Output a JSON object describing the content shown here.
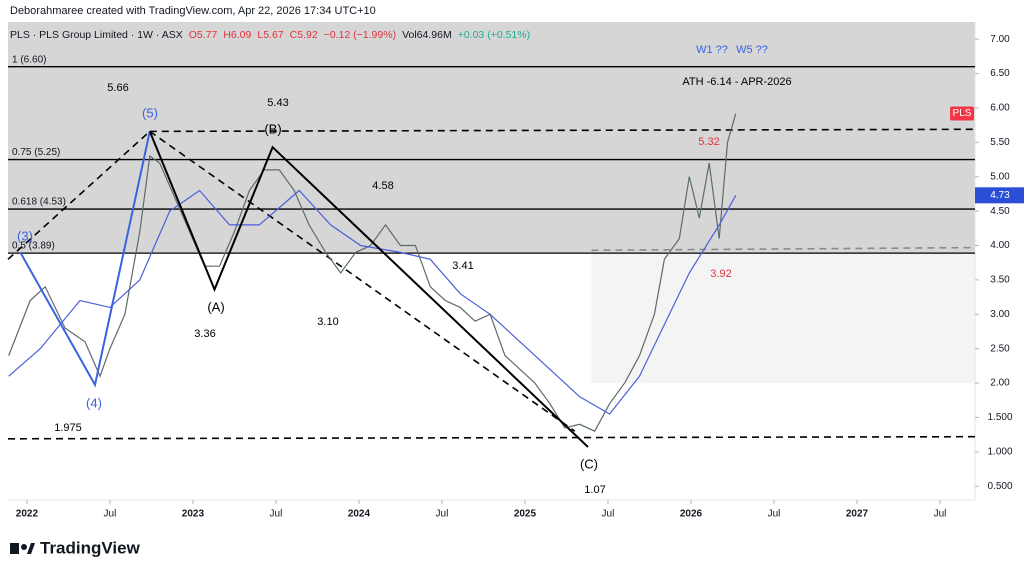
{
  "header": {
    "credit": "Deborahmaree created with TradingView.com, Apr 22, 2026 17:34 UTC+10"
  },
  "footer": {
    "brand": "TradingView"
  },
  "chart_data": {
    "type": "line",
    "legend_text": "PLS · PLS Group Limited · 1W · ASX",
    "ohlc": [
      "O5.77",
      "H6.09",
      "L5.67",
      "C5.92",
      "−0.12 (−1.99%)"
    ],
    "volume": [
      "Vol64.96M",
      "+0.03 (+0.51%)"
    ],
    "xlim": [
      2021.886,
      2027.711
    ],
    "ylim": [
      0.3,
      7.25
    ],
    "xticks": [
      2022,
      {
        "value": 2022.5,
        "label": "Jul"
      },
      2023,
      {
        "value": 2023.5,
        "label": "Jul"
      },
      2024,
      {
        "value": 2024.5,
        "label": "Jul"
      },
      2025,
      {
        "value": 2025.5,
        "label": "Jul"
      },
      2026,
      {
        "value": 2026.5,
        "label": "Jul"
      },
      2027,
      {
        "value": 2027.5,
        "label": "Jul"
      }
    ],
    "yticks": [
      {
        "value": 7,
        "label": "7.00"
      },
      {
        "value": 6.5,
        "label": "6.50"
      },
      {
        "value": 6,
        "label": "6.00"
      },
      {
        "value": 5.5,
        "label": "5.50"
      },
      {
        "value": 5,
        "label": "5.00"
      },
      {
        "value": 4.5,
        "label": "4.50"
      },
      {
        "value": 4,
        "label": "4.00"
      },
      {
        "value": 3.5,
        "label": "3.50"
      },
      {
        "value": 3,
        "label": "3.00"
      },
      {
        "value": 2.5,
        "label": "2.50"
      },
      {
        "value": 2,
        "label": "2.00"
      },
      {
        "value": 1.5,
        "label": "1.500"
      },
      {
        "value": 1,
        "label": "1.000"
      },
      {
        "value": 0.5,
        "label": "0.500"
      }
    ],
    "grid": false,
    "series": [
      {
        "color": "#5d6b6b",
        "x": [
          2021.89,
          2022.02,
          2022.11,
          2022.23,
          2022.35,
          2022.44,
          2022.5,
          2022.59,
          2022.68,
          2022.74,
          2022.8,
          2022.89,
          2022.98,
          2023.07,
          2023.16,
          2023.25,
          2023.34,
          2023.43,
          2023.52,
          2023.61,
          2023.7,
          2023.8,
          2023.89,
          2023.98,
          2024.07,
          2024.16,
          2024.25,
          2024.34,
          2024.43,
          2024.52,
          2024.61,
          2024.7,
          2024.79,
          2024.88,
          2024.97,
          2025.06,
          2025.15,
          2025.24,
          2025.33,
          2025.42,
          2025.51,
          2025.6,
          2025.69,
          2025.78,
          2025.84,
          2025.93,
          2025.99,
          2026.05,
          2026.11,
          2026.17,
          2026.22,
          2026.27
        ],
        "values": [
          2.4,
          3.2,
          3.4,
          2.8,
          2.6,
          2.1,
          2.5,
          3.0,
          4.2,
          5.3,
          5.2,
          4.7,
          4.2,
          3.7,
          3.7,
          4.2,
          4.8,
          5.1,
          5.1,
          4.8,
          4.3,
          3.9,
          3.6,
          3.9,
          4.0,
          4.3,
          4.0,
          4.0,
          3.4,
          3.2,
          3.1,
          2.9,
          3.0,
          2.4,
          2.2,
          2.0,
          1.7,
          1.35,
          1.4,
          1.3,
          1.7,
          2.0,
          2.4,
          3.0,
          3.8,
          4.1,
          5.0,
          4.4,
          5.2,
          4.1,
          5.5,
          5.92
        ]
      },
      {
        "color": "#4a5fd9",
        "x": [
          2021.89,
          2022.08,
          2022.32,
          2022.5,
          2022.68,
          2022.86,
          2023.04,
          2023.22,
          2023.4,
          2023.64,
          2023.83,
          2024.01,
          2024.25,
          2024.43,
          2024.61,
          2024.79,
          2024.97,
          2025.15,
          2025.33,
          2025.51,
          2025.69,
          2025.81,
          2025.99,
          2026.17,
          2026.27
        ],
        "values": [
          2.1,
          2.5,
          3.2,
          3.1,
          3.5,
          4.5,
          4.8,
          4.3,
          4.3,
          4.8,
          4.3,
          4.0,
          3.9,
          3.8,
          3.3,
          3.0,
          2.6,
          2.2,
          1.8,
          1.55,
          2.1,
          2.7,
          3.6,
          4.3,
          4.73
        ]
      }
    ],
    "levels": [
      {
        "label": "1 (6.60)",
        "value": 6.6
      },
      {
        "label": "0.75 (5.25)",
        "value": 5.25
      },
      {
        "label": "0.618 (4.53)",
        "value": 4.53
      },
      {
        "label": "0.5 (3.89)",
        "value": 3.89
      }
    ],
    "trendlines": [
      {
        "color": "#000000",
        "x": [
          2022.74,
          2027.711
        ],
        "y": [
          5.66,
          5.69
        ]
      },
      {
        "color": "#000000",
        "x": [
          2021.886,
          2027.711
        ],
        "y": [
          1.19,
          1.22
        ]
      },
      {
        "color": "#8a8a8a",
        "x": [
          2025.4,
          2027.711
        ],
        "y": [
          3.93,
          3.97
        ]
      },
      {
        "color": "#000000",
        "x": [
          2021.886,
          2022.74
        ],
        "y": [
          3.8,
          5.66
        ]
      },
      {
        "color": "#000000",
        "x": [
          2022.74,
          2025.3
        ],
        "y": [
          5.66,
          1.3
        ]
      }
    ],
    "waves": [
      {
        "color": "#3a63e0",
        "labels": [
          "(3)",
          "(4)",
          "(5)"
        ],
        "x": [
          2021.96,
          2022.41,
          2022.74
        ],
        "y": [
          3.9,
          1.975,
          5.66
        ]
      },
      {
        "color": "#000000",
        "labels": [
          null,
          "(A)",
          "(B)",
          "(C)"
        ],
        "x": [
          2022.74,
          2023.13,
          2023.48,
          2025.38
        ],
        "y": [
          5.66,
          3.36,
          5.43,
          1.07
        ]
      }
    ],
    "annotations": [
      {
        "text": "5.66",
        "color": "#000000"
      },
      {
        "text": "5.43",
        "color": "#000000"
      },
      {
        "text": "4.58",
        "color": "#000000"
      },
      {
        "text": "3.41",
        "color": "#000000"
      },
      {
        "text": "3.10",
        "color": "#000000"
      },
      {
        "text": "3.36",
        "color": "#000000"
      },
      {
        "text": "1.975",
        "color": "#000000"
      },
      {
        "text": "1.07",
        "color": "#000000"
      },
      {
        "text": "ATH -6.14 - APR-2026",
        "color": "#000000"
      },
      {
        "text": "W1 ??",
        "color": "#3a63e0"
      },
      {
        "text": "W5 ??",
        "color": "#3a63e0"
      },
      {
        "text": "5.32",
        "color": "#e0323c"
      },
      {
        "text": "3.92",
        "color": "#e0323c"
      }
    ],
    "price_tags": [
      {
        "text": "PLS",
        "value": 5.92,
        "color": "#f23645"
      },
      {
        "value": 4.73,
        "color": "#2a4fd6"
      }
    ]
  }
}
